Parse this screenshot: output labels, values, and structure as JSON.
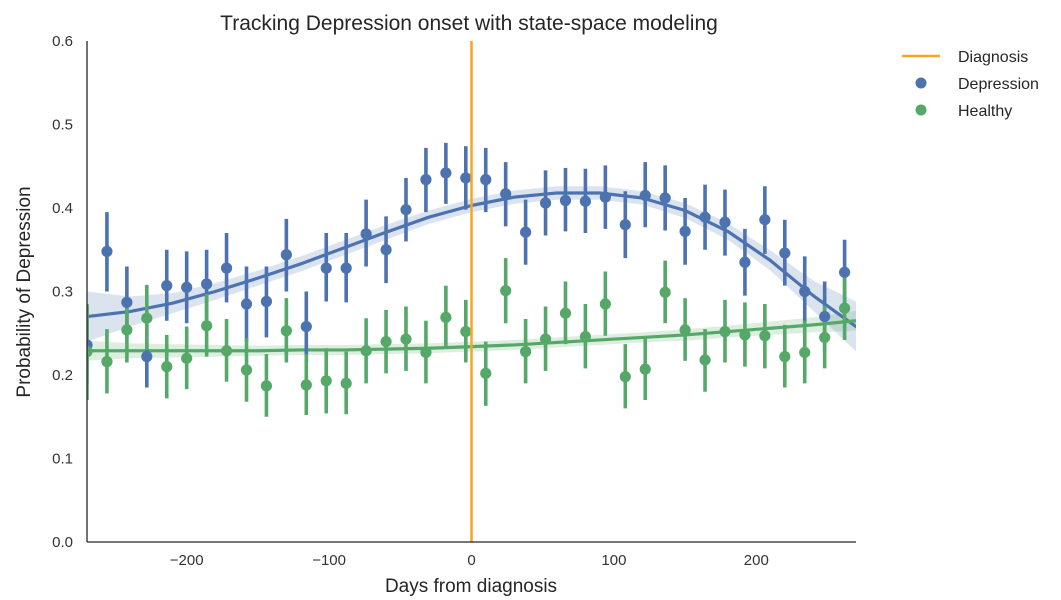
{
  "chart_data": {
    "type": "scatter",
    "title": "Tracking Depression onset with state-space modeling",
    "xlabel": "Days from diagnosis",
    "ylabel": "Probability of Depression",
    "xlim": [
      -270,
      270
    ],
    "ylim": [
      0.0,
      0.6
    ],
    "x_ticks": [
      -200,
      -100,
      0,
      100,
      200
    ],
    "x_tick_labels": [
      "−200",
      "−100",
      "0",
      "100",
      "200"
    ],
    "y_ticks": [
      0.0,
      0.1,
      0.2,
      0.3,
      0.4,
      0.5,
      0.6
    ],
    "y_tick_labels": [
      "0.0",
      "0.1",
      "0.2",
      "0.3",
      "0.4",
      "0.5",
      "0.6"
    ],
    "grid": false,
    "legend_position": "outside-top-right",
    "vline": {
      "x": 0,
      "name": "Diagnosis",
      "color": "#f5a623"
    },
    "series": [
      {
        "name": "Depression",
        "color": "#4c72b0",
        "x": [
          -270,
          -256,
          -242,
          -228,
          -214,
          -200,
          -186,
          -172,
          -158,
          -144,
          -130,
          -116,
          -102,
          -88,
          -74,
          -60,
          -46,
          -32,
          -18,
          -4,
          10,
          24,
          38,
          52,
          66,
          80,
          94,
          108,
          122,
          136,
          150,
          164,
          178,
          192,
          206,
          220,
          234,
          248,
          262
        ],
        "y": [
          0.236,
          0.348,
          0.287,
          0.222,
          0.307,
          0.305,
          0.309,
          0.328,
          0.285,
          0.288,
          0.344,
          0.258,
          0.328,
          0.328,
          0.369,
          0.35,
          0.398,
          0.434,
          0.442,
          0.436,
          0.434,
          0.417,
          0.371,
          0.406,
          0.409,
          0.408,
          0.413,
          0.38,
          0.415,
          0.412,
          0.372,
          0.389,
          0.383,
          0.335,
          0.386,
          0.346,
          0.3,
          0.27,
          0.323
        ],
        "ci_low": [
          0.19,
          0.3,
          0.245,
          0.185,
          0.265,
          0.262,
          0.265,
          0.287,
          0.24,
          0.245,
          0.3,
          0.215,
          0.288,
          0.287,
          0.33,
          0.31,
          0.36,
          0.395,
          0.405,
          0.398,
          0.395,
          0.378,
          0.332,
          0.367,
          0.372,
          0.37,
          0.375,
          0.34,
          0.377,
          0.373,
          0.332,
          0.35,
          0.343,
          0.295,
          0.345,
          0.307,
          0.258,
          0.228,
          0.282
        ],
        "ci_high": [
          0.282,
          0.395,
          0.33,
          0.26,
          0.35,
          0.348,
          0.35,
          0.37,
          0.33,
          0.33,
          0.387,
          0.3,
          0.37,
          0.37,
          0.41,
          0.39,
          0.436,
          0.472,
          0.478,
          0.474,
          0.472,
          0.455,
          0.41,
          0.445,
          0.448,
          0.447,
          0.451,
          0.42,
          0.455,
          0.451,
          0.412,
          0.428,
          0.422,
          0.375,
          0.426,
          0.386,
          0.342,
          0.312,
          0.362
        ],
        "trend_x": [
          -270,
          -240,
          -210,
          -180,
          -150,
          -120,
          -90,
          -60,
          -30,
          0,
          30,
          60,
          90,
          120,
          150,
          180,
          210,
          240,
          270
        ],
        "trend_y": [
          0.27,
          0.276,
          0.286,
          0.3,
          0.316,
          0.333,
          0.352,
          0.371,
          0.389,
          0.403,
          0.413,
          0.418,
          0.418,
          0.412,
          0.397,
          0.372,
          0.337,
          0.295,
          0.258
        ],
        "trend_ci_width": [
          0.03,
          0.018,
          0.012,
          0.01,
          0.009,
          0.009,
          0.009,
          0.009,
          0.008,
          0.008,
          0.008,
          0.008,
          0.008,
          0.008,
          0.009,
          0.01,
          0.012,
          0.018,
          0.03
        ]
      },
      {
        "name": "Healthy",
        "color": "#55a868",
        "x": [
          -270,
          -256,
          -242,
          -228,
          -214,
          -200,
          -186,
          -172,
          -158,
          -144,
          -130,
          -116,
          -102,
          -88,
          -74,
          -60,
          -46,
          -32,
          -18,
          -4,
          10,
          24,
          38,
          52,
          66,
          80,
          94,
          108,
          122,
          136,
          150,
          164,
          178,
          192,
          206,
          220,
          234,
          248,
          262
        ],
        "y": [
          0.228,
          0.216,
          0.254,
          0.268,
          0.21,
          0.22,
          0.259,
          0.229,
          0.206,
          0.187,
          0.253,
          0.188,
          0.193,
          0.19,
          0.229,
          0.24,
          0.243,
          0.227,
          0.269,
          0.252,
          0.202,
          0.301,
          0.228,
          0.243,
          0.274,
          0.246,
          0.285,
          0.198,
          0.207,
          0.299,
          0.254,
          0.218,
          0.252,
          0.248,
          0.247,
          0.222,
          0.227,
          0.245,
          0.28
        ],
        "ci_low": [
          0.17,
          0.178,
          0.215,
          0.23,
          0.172,
          0.183,
          0.222,
          0.192,
          0.168,
          0.15,
          0.215,
          0.152,
          0.154,
          0.153,
          0.19,
          0.202,
          0.205,
          0.19,
          0.233,
          0.215,
          0.163,
          0.262,
          0.19,
          0.205,
          0.237,
          0.208,
          0.247,
          0.16,
          0.17,
          0.262,
          0.217,
          0.18,
          0.215,
          0.21,
          0.208,
          0.185,
          0.19,
          0.208,
          0.242
        ],
        "ci_high": [
          0.285,
          0.255,
          0.293,
          0.308,
          0.248,
          0.258,
          0.297,
          0.267,
          0.244,
          0.225,
          0.292,
          0.225,
          0.232,
          0.228,
          0.268,
          0.278,
          0.282,
          0.265,
          0.307,
          0.29,
          0.24,
          0.34,
          0.267,
          0.282,
          0.312,
          0.285,
          0.324,
          0.237,
          0.245,
          0.337,
          0.292,
          0.255,
          0.29,
          0.287,
          0.285,
          0.26,
          0.265,
          0.283,
          0.318
        ],
        "trend_x": [
          -270,
          -240,
          -210,
          -180,
          -150,
          -120,
          -90,
          -60,
          -30,
          0,
          30,
          60,
          90,
          120,
          150,
          180,
          210,
          240,
          270
        ],
        "trend_y": [
          0.229,
          0.229,
          0.229,
          0.229,
          0.229,
          0.23,
          0.23,
          0.231,
          0.232,
          0.234,
          0.236,
          0.239,
          0.242,
          0.245,
          0.248,
          0.252,
          0.256,
          0.26,
          0.265
        ],
        "trend_ci_width": [
          0.012,
          0.009,
          0.008,
          0.007,
          0.006,
          0.006,
          0.006,
          0.006,
          0.006,
          0.006,
          0.006,
          0.006,
          0.006,
          0.006,
          0.007,
          0.007,
          0.008,
          0.009,
          0.012
        ]
      }
    ]
  }
}
